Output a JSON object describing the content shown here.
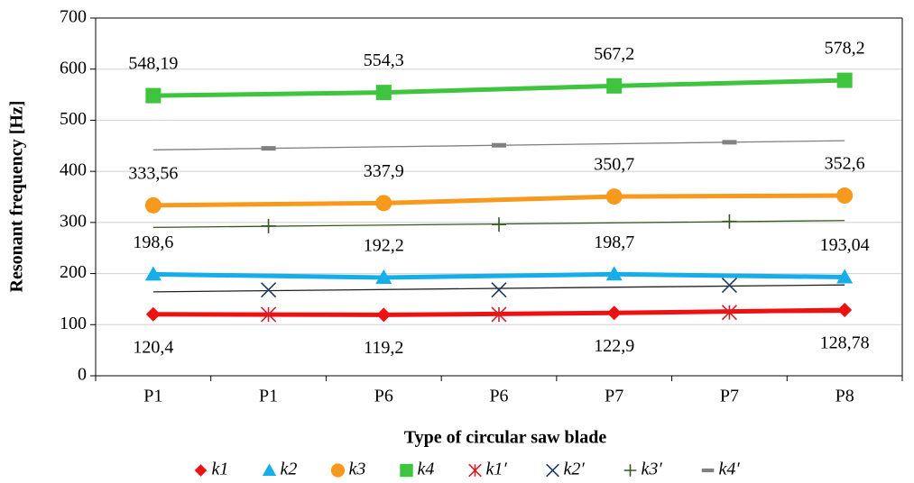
{
  "chart_data": {
    "type": "line",
    "x_label": "Type of circular saw blade",
    "y_label": "Resonant frequency [Hz]",
    "categories": [
      "P1",
      "P1",
      "P6",
      "P6",
      "P7",
      "P7",
      "P8"
    ],
    "ylim": [
      0,
      700
    ],
    "yticks": [
      0,
      100,
      200,
      300,
      400,
      500,
      600,
      700
    ],
    "grid": true,
    "series": [
      {
        "name": "k1",
        "color": "#ee1111",
        "marker": "diamond",
        "line": "thick",
        "label_position": "below",
        "values": [
          120.4,
          null,
          119.2,
          null,
          122.9,
          null,
          128.78
        ],
        "value_labels": [
          "120,4",
          null,
          "119,2",
          null,
          "122,9",
          null,
          "128,78"
        ]
      },
      {
        "name": "k2",
        "color": "#16aee8",
        "marker": "triangle",
        "line": "thick",
        "label_position": "above",
        "values": [
          198.6,
          null,
          192.2,
          null,
          198.7,
          null,
          193.04
        ],
        "value_labels": [
          "198,6",
          null,
          "192,2",
          null,
          "198,7",
          null,
          "193,04"
        ]
      },
      {
        "name": "k3",
        "color": "#f7991c",
        "marker": "circle",
        "line": "thick",
        "label_position": "above",
        "values": [
          333.56,
          null,
          337.9,
          null,
          350.7,
          null,
          352.6
        ],
        "value_labels": [
          "333,56",
          null,
          "337,9",
          null,
          "350,7",
          null,
          "352,6"
        ]
      },
      {
        "name": "k4",
        "color": "#3ec43e",
        "marker": "square",
        "line": "thick",
        "label_position": "above",
        "values": [
          548.19,
          null,
          554.3,
          null,
          567.2,
          null,
          578.2
        ],
        "value_labels": [
          "548,19",
          null,
          "554,3",
          null,
          "567,2",
          null,
          "578,2"
        ]
      },
      {
        "name": "k1′",
        "color": "#d0202a",
        "marker": "asterisk",
        "line": "trend",
        "trend_color": "#ee1111",
        "values": [
          null,
          120,
          null,
          120,
          null,
          124,
          null
        ]
      },
      {
        "name": "k2′",
        "color": "#1f3864",
        "marker": "cross",
        "line": "trend",
        "trend_color": "#222222",
        "values": [
          null,
          168,
          null,
          168,
          null,
          177,
          null
        ]
      },
      {
        "name": "k3′",
        "color": "#375623",
        "marker": "plus",
        "line": "trend",
        "trend_color": "#375623",
        "values": [
          null,
          293,
          null,
          296,
          null,
          302,
          null
        ]
      },
      {
        "name": "k4′",
        "color": "#808080",
        "marker": "dash",
        "line": "trend",
        "trend_color": "#808080",
        "values": [
          null,
          445,
          null,
          451,
          null,
          457,
          null
        ]
      }
    ]
  }
}
